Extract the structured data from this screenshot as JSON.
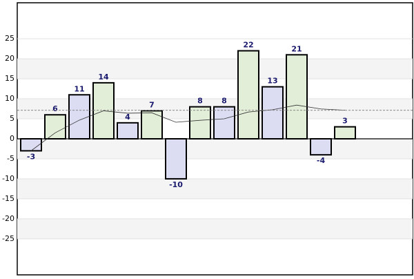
{
  "chart_data": {
    "type": "bar",
    "categories": [
      null,
      null,
      null,
      null,
      null,
      null,
      null,
      null,
      null,
      null,
      null,
      null,
      null,
      null
    ],
    "series": [
      {
        "values": [
          -3,
          6,
          11,
          14,
          4,
          7,
          -10,
          8,
          8,
          22,
          13,
          21,
          -4,
          3
        ],
        "colors": [
          "#dcdcf2",
          "#e2eed8",
          "#dcdcf2",
          "#e2eed8",
          "#dcdcf2",
          "#e2eed8",
          "#dcdcf2",
          "#e2eed8",
          "#dcdcf2",
          "#e2eed8",
          "#dcdcf2",
          "#e2eed8",
          "#dcdcf2",
          "#e2eed8"
        ]
      },
      {
        "type": "line",
        "color": "#333333",
        "values": [
          -3,
          1.5,
          4.67,
          7,
          6.4,
          6.5,
          4.14,
          4.63,
          5,
          6.7,
          7.27,
          8.42,
          7.46,
          7.14
        ]
      }
    ],
    "average_line": 7.14,
    "ylim": [
      -34,
      34
    ],
    "yticks": [
      -25,
      -20,
      -15,
      -10,
      -5,
      0,
      5,
      10,
      15,
      20,
      25
    ],
    "grid": true
  }
}
